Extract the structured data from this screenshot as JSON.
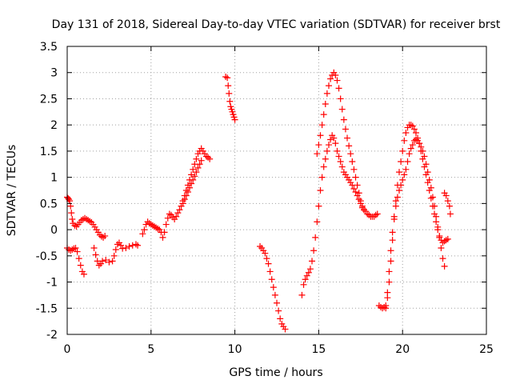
{
  "chart_data": {
    "type": "scatter",
    "title": "Day 131 of 2018, Sidereal Day-to-day VTEC variation (SDTVAR) for receiver brst",
    "xlabel": "GPS time / hours",
    "ylabel": "SDTVAR / TECUs",
    "xlim": [
      0,
      25
    ],
    "ylim": [
      -2,
      3.5
    ],
    "xticks": [
      0,
      5,
      10,
      15,
      20,
      25
    ],
    "yticks": [
      -2,
      -1.5,
      -1,
      -0.5,
      0,
      0.5,
      1,
      1.5,
      2,
      2.5,
      3,
      3.5
    ],
    "grid": true,
    "marker": "+",
    "color": "#ff0000",
    "series": [
      {
        "points": [
          [
            0.0,
            0.62
          ],
          [
            0.05,
            0.6
          ],
          [
            0.1,
            0.58
          ],
          [
            0.15,
            0.55
          ],
          [
            0.2,
            0.45
          ],
          [
            0.25,
            0.32
          ],
          [
            0.3,
            0.2
          ],
          [
            0.35,
            0.12
          ],
          [
            0.45,
            0.08
          ],
          [
            0.55,
            0.06
          ],
          [
            0.65,
            0.1
          ],
          [
            0.75,
            0.14
          ],
          [
            0.85,
            0.18
          ],
          [
            0.95,
            0.2
          ],
          [
            1.05,
            0.22
          ],
          [
            1.15,
            0.2
          ],
          [
            1.25,
            0.18
          ],
          [
            1.35,
            0.16
          ],
          [
            1.45,
            0.14
          ],
          [
            1.55,
            0.1
          ],
          [
            1.65,
            0.05
          ],
          [
            1.75,
            0.0
          ],
          [
            1.85,
            -0.05
          ],
          [
            1.95,
            -0.1
          ],
          [
            2.05,
            -0.13
          ],
          [
            2.15,
            -0.15
          ],
          [
            2.25,
            -0.12
          ],
          [
            0.0,
            -0.35
          ],
          [
            0.1,
            -0.38
          ],
          [
            0.2,
            -0.4
          ],
          [
            0.3,
            -0.38
          ],
          [
            0.4,
            -0.36
          ],
          [
            0.5,
            -0.35
          ],
          [
            0.6,
            -0.42
          ],
          [
            0.7,
            -0.55
          ],
          [
            0.8,
            -0.68
          ],
          [
            0.9,
            -0.8
          ],
          [
            1.0,
            -0.85
          ],
          [
            1.6,
            -0.35
          ],
          [
            1.7,
            -0.48
          ],
          [
            1.8,
            -0.6
          ],
          [
            1.9,
            -0.68
          ],
          [
            2.0,
            -0.65
          ],
          [
            2.1,
            -0.6
          ],
          [
            2.3,
            -0.58
          ],
          [
            2.5,
            -0.62
          ],
          [
            2.7,
            -0.6
          ],
          [
            2.8,
            -0.5
          ],
          [
            2.9,
            -0.38
          ],
          [
            3.0,
            -0.28
          ],
          [
            3.1,
            -0.25
          ],
          [
            3.2,
            -0.3
          ],
          [
            3.3,
            -0.36
          ],
          [
            3.5,
            -0.35
          ],
          [
            3.7,
            -0.32
          ],
          [
            3.9,
            -0.3
          ],
          [
            4.1,
            -0.28
          ],
          [
            4.2,
            -0.3
          ],
          [
            4.5,
            -0.08
          ],
          [
            4.6,
            0.0
          ],
          [
            4.7,
            0.1
          ],
          [
            4.8,
            0.15
          ],
          [
            4.9,
            0.12
          ],
          [
            5.0,
            0.1
          ],
          [
            5.1,
            0.08
          ],
          [
            5.2,
            0.06
          ],
          [
            5.3,
            0.04
          ],
          [
            5.4,
            0.02
          ],
          [
            5.5,
            0.0
          ],
          [
            5.6,
            -0.05
          ],
          [
            5.7,
            -0.15
          ],
          [
            5.8,
            -0.05
          ],
          [
            5.9,
            0.1
          ],
          [
            6.0,
            0.22
          ],
          [
            6.1,
            0.3
          ],
          [
            6.2,
            0.28
          ],
          [
            6.3,
            0.24
          ],
          [
            6.4,
            0.2
          ],
          [
            6.5,
            0.25
          ],
          [
            6.6,
            0.32
          ],
          [
            6.7,
            0.38
          ],
          [
            6.8,
            0.45
          ],
          [
            6.9,
            0.55
          ],
          [
            7.0,
            0.65
          ],
          [
            7.1,
            0.75
          ],
          [
            7.2,
            0.85
          ],
          [
            7.3,
            0.95
          ],
          [
            7.4,
            1.05
          ],
          [
            7.5,
            1.15
          ],
          [
            7.6,
            1.25
          ],
          [
            7.7,
            1.35
          ],
          [
            7.8,
            1.45
          ],
          [
            7.9,
            1.5
          ],
          [
            8.0,
            1.55
          ],
          [
            8.1,
            1.5
          ],
          [
            8.2,
            1.45
          ],
          [
            8.3,
            1.4
          ],
          [
            8.4,
            1.38
          ],
          [
            8.5,
            1.35
          ],
          [
            6.9,
            0.5
          ],
          [
            7.0,
            0.58
          ],
          [
            7.1,
            0.65
          ],
          [
            7.2,
            0.72
          ],
          [
            7.3,
            0.8
          ],
          [
            7.4,
            0.88
          ],
          [
            7.5,
            0.95
          ],
          [
            7.6,
            1.02
          ],
          [
            7.7,
            1.1
          ],
          [
            7.8,
            1.18
          ],
          [
            7.9,
            1.25
          ],
          [
            8.0,
            1.32
          ],
          [
            9.45,
            2.92
          ],
          [
            9.55,
            2.9
          ],
          [
            9.6,
            2.75
          ],
          [
            9.65,
            2.6
          ],
          [
            9.7,
            2.45
          ],
          [
            9.75,
            2.35
          ],
          [
            9.8,
            2.3
          ],
          [
            9.85,
            2.25
          ],
          [
            9.9,
            2.2
          ],
          [
            9.95,
            2.15
          ],
          [
            10.0,
            2.1
          ],
          [
            11.5,
            -0.32
          ],
          [
            11.6,
            -0.35
          ],
          [
            11.7,
            -0.4
          ],
          [
            11.8,
            -0.45
          ],
          [
            11.9,
            -0.55
          ],
          [
            12.0,
            -0.65
          ],
          [
            12.1,
            -0.8
          ],
          [
            12.2,
            -0.95
          ],
          [
            12.3,
            -1.1
          ],
          [
            12.4,
            -1.25
          ],
          [
            12.5,
            -1.4
          ],
          [
            12.6,
            -1.55
          ],
          [
            12.7,
            -1.7
          ],
          [
            12.8,
            -1.8
          ],
          [
            12.9,
            -1.85
          ],
          [
            13.0,
            -1.9
          ],
          [
            14.0,
            -1.25
          ],
          [
            14.1,
            -1.05
          ],
          [
            14.2,
            -0.95
          ],
          [
            14.3,
            -0.88
          ],
          [
            14.4,
            -0.82
          ],
          [
            14.5,
            -0.75
          ],
          [
            14.6,
            -0.6
          ],
          [
            14.7,
            -0.4
          ],
          [
            14.8,
            -0.15
          ],
          [
            14.9,
            0.15
          ],
          [
            15.0,
            0.45
          ],
          [
            15.1,
            0.75
          ],
          [
            15.2,
            1.0
          ],
          [
            15.3,
            1.2
          ],
          [
            15.4,
            1.35
          ],
          [
            15.5,
            1.5
          ],
          [
            15.6,
            1.62
          ],
          [
            15.7,
            1.72
          ],
          [
            15.8,
            1.8
          ],
          [
            15.9,
            1.75
          ],
          [
            16.0,
            1.65
          ],
          [
            16.1,
            1.5
          ],
          [
            16.2,
            1.4
          ],
          [
            16.3,
            1.3
          ],
          [
            16.4,
            1.2
          ],
          [
            16.5,
            1.1
          ],
          [
            16.6,
            1.05
          ],
          [
            16.7,
            1.0
          ],
          [
            16.8,
            0.95
          ],
          [
            16.9,
            0.9
          ],
          [
            17.0,
            0.85
          ],
          [
            17.1,
            0.78
          ],
          [
            17.2,
            0.72
          ],
          [
            17.3,
            0.65
          ],
          [
            17.4,
            0.58
          ],
          [
            17.5,
            0.5
          ],
          [
            17.6,
            0.42
          ],
          [
            17.7,
            0.38
          ],
          [
            17.8,
            0.35
          ],
          [
            17.9,
            0.3
          ],
          [
            18.0,
            0.28
          ],
          [
            18.1,
            0.25
          ],
          [
            18.2,
            0.25
          ],
          [
            18.3,
            0.25
          ],
          [
            18.4,
            0.28
          ],
          [
            18.5,
            0.3
          ],
          [
            14.9,
            1.45
          ],
          [
            15.0,
            1.62
          ],
          [
            15.1,
            1.8
          ],
          [
            15.2,
            2.0
          ],
          [
            15.3,
            2.2
          ],
          [
            15.4,
            2.4
          ],
          [
            15.5,
            2.6
          ],
          [
            15.6,
            2.75
          ],
          [
            15.7,
            2.88
          ],
          [
            15.8,
            2.95
          ],
          [
            15.9,
            3.0
          ],
          [
            16.0,
            2.95
          ],
          [
            16.1,
            2.85
          ],
          [
            16.2,
            2.7
          ],
          [
            16.3,
            2.5
          ],
          [
            16.4,
            2.3
          ],
          [
            16.5,
            2.1
          ],
          [
            16.6,
            1.92
          ],
          [
            16.7,
            1.75
          ],
          [
            16.8,
            1.6
          ],
          [
            16.9,
            1.45
          ],
          [
            17.0,
            1.3
          ],
          [
            17.1,
            1.15
          ],
          [
            17.2,
            1.0
          ],
          [
            17.3,
            0.85
          ],
          [
            17.4,
            0.7
          ],
          [
            17.5,
            0.55
          ],
          [
            17.6,
            0.45
          ],
          [
            17.7,
            0.38
          ],
          [
            18.6,
            -1.45
          ],
          [
            18.7,
            -1.48
          ],
          [
            18.8,
            -1.5
          ],
          [
            18.9,
            -1.48
          ],
          [
            19.0,
            -1.45
          ],
          [
            19.1,
            -1.3
          ],
          [
            19.2,
            -1.0
          ],
          [
            19.3,
            -0.6
          ],
          [
            19.4,
            -0.2
          ],
          [
            19.5,
            0.2
          ],
          [
            19.6,
            0.55
          ],
          [
            19.7,
            0.85
          ],
          [
            19.8,
            1.1
          ],
          [
            19.9,
            1.3
          ],
          [
            20.0,
            1.5
          ],
          [
            20.1,
            1.7
          ],
          [
            20.2,
            1.85
          ],
          [
            20.3,
            1.95
          ],
          [
            20.4,
            2.0
          ],
          [
            20.5,
            2.0
          ],
          [
            20.6,
            1.98
          ],
          [
            20.7,
            1.92
          ],
          [
            20.8,
            1.85
          ],
          [
            20.9,
            1.75
          ],
          [
            21.0,
            1.65
          ],
          [
            21.1,
            1.5
          ],
          [
            21.2,
            1.35
          ],
          [
            21.3,
            1.2
          ],
          [
            21.4,
            1.05
          ],
          [
            21.5,
            0.9
          ],
          [
            21.6,
            0.75
          ],
          [
            21.7,
            0.6
          ],
          [
            21.8,
            0.45
          ],
          [
            21.9,
            0.3
          ],
          [
            22.0,
            0.15
          ],
          [
            22.1,
            0.0
          ],
          [
            22.2,
            -0.12
          ],
          [
            22.3,
            -0.2
          ],
          [
            22.4,
            -0.25
          ],
          [
            22.5,
            -0.22
          ],
          [
            22.6,
            -0.2
          ],
          [
            22.7,
            -0.18
          ],
          [
            19.0,
            -1.5
          ],
          [
            19.1,
            -1.2
          ],
          [
            19.2,
            -0.8
          ],
          [
            19.3,
            -0.4
          ],
          [
            19.4,
            -0.05
          ],
          [
            19.5,
            0.25
          ],
          [
            19.6,
            0.45
          ],
          [
            19.7,
            0.62
          ],
          [
            19.8,
            0.75
          ],
          [
            19.9,
            0.85
          ],
          [
            20.0,
            0.95
          ],
          [
            20.1,
            1.05
          ],
          [
            20.2,
            1.15
          ],
          [
            20.3,
            1.3
          ],
          [
            20.4,
            1.45
          ],
          [
            20.5,
            1.55
          ],
          [
            20.6,
            1.62
          ],
          [
            20.7,
            1.7
          ],
          [
            20.8,
            1.72
          ],
          [
            20.9,
            1.7
          ],
          [
            21.0,
            1.65
          ],
          [
            21.1,
            1.58
          ],
          [
            21.2,
            1.5
          ],
          [
            21.3,
            1.4
          ],
          [
            21.4,
            1.25
          ],
          [
            21.5,
            1.1
          ],
          [
            21.6,
            0.95
          ],
          [
            21.7,
            0.8
          ],
          [
            21.8,
            0.62
          ],
          [
            21.9,
            0.45
          ],
          [
            22.0,
            0.25
          ],
          [
            22.1,
            0.05
          ],
          [
            22.2,
            -0.15
          ],
          [
            22.3,
            -0.35
          ],
          [
            22.4,
            -0.55
          ],
          [
            22.5,
            -0.7
          ],
          [
            22.5,
            0.7
          ],
          [
            22.6,
            0.65
          ],
          [
            22.7,
            0.55
          ],
          [
            22.8,
            0.45
          ],
          [
            22.85,
            0.3
          ]
        ]
      }
    ]
  }
}
